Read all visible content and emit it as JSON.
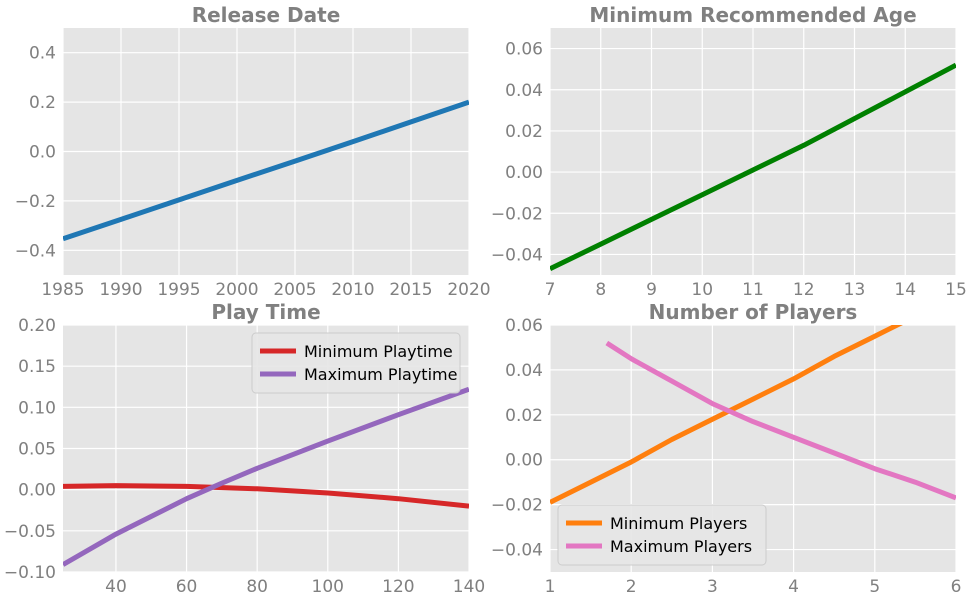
{
  "colors": {
    "axes_bg": "#e5e5e5",
    "grid": "#ffffff",
    "text": "#808080",
    "blue": "#1f77b4",
    "green": "#008000",
    "red": "#d62728",
    "purple": "#9467bd",
    "orange": "#ff7f0e",
    "pink": "#e377c2"
  },
  "chart_data": [
    {
      "type": "line",
      "title": "Release Date",
      "xlabel": "",
      "ylabel": "",
      "xlim": [
        1985,
        2020
      ],
      "ylim": [
        -0.5,
        0.5
      ],
      "xticks": [
        "1985",
        "1990",
        "1995",
        "2000",
        "2005",
        "2010",
        "2015",
        "2020"
      ],
      "yticks": [
        "−0.4",
        "−0.2",
        "0.0",
        "0.2",
        "0.4"
      ],
      "grid": true,
      "series": [
        {
          "x": [
            1985,
            1990,
            1995,
            2000,
            2005,
            2010,
            2015,
            2020
          ],
          "y": [
            -0.353,
            -0.275,
            -0.196,
            -0.117,
            -0.039,
            0.04,
            0.12,
            0.2
          ]
        }
      ]
    },
    {
      "type": "line",
      "title": "Minimum Recommended Age",
      "xlabel": "",
      "ylabel": "",
      "xlim": [
        7,
        15
      ],
      "ylim": [
        -0.05,
        0.07
      ],
      "xticks": [
        "7",
        "8",
        "9",
        "10",
        "11",
        "12",
        "13",
        "14",
        "15"
      ],
      "yticks": [
        "−0.04",
        "−0.02",
        "0.00",
        "0.02",
        "0.04",
        "0.06"
      ],
      "grid": true,
      "series": [
        {
          "x": [
            7,
            8,
            9,
            10,
            11,
            12,
            13,
            14,
            15
          ],
          "y": [
            -0.047,
            -0.035,
            -0.023,
            -0.011,
            0.001,
            0.013,
            0.026,
            0.039,
            0.052
          ]
        }
      ]
    },
    {
      "type": "line",
      "title": "Play Time",
      "xlabel": "",
      "ylabel": "",
      "xlim": [
        25,
        140
      ],
      "ylim": [
        -0.1,
        0.2
      ],
      "xticks": [
        "40",
        "60",
        "80",
        "100",
        "120",
        "140"
      ],
      "yticks": [
        "−0.10",
        "−0.05",
        "0.00",
        "0.05",
        "0.10",
        "0.15",
        "0.20"
      ],
      "grid": true,
      "legend": "top-right",
      "series": [
        {
          "name": "Minimum Playtime",
          "x": [
            25,
            40,
            60,
            80,
            100,
            120,
            140
          ],
          "y": [
            0.004,
            0.005,
            0.004,
            0.001,
            -0.004,
            -0.011,
            -0.02
          ]
        },
        {
          "name": "Maximum Playtime",
          "x": [
            25,
            40,
            60,
            70,
            80,
            100,
            120,
            140
          ],
          "y": [
            -0.091,
            -0.054,
            -0.011,
            0.008,
            0.026,
            0.059,
            0.091,
            0.122
          ]
        }
      ]
    },
    {
      "type": "line",
      "title": "Number of Players",
      "xlabel": "",
      "ylabel": "",
      "xlim": [
        1,
        6
      ],
      "ylim": [
        -0.05,
        0.06
      ],
      "xticks": [
        "1",
        "2",
        "3",
        "4",
        "5",
        "6"
      ],
      "yticks": [
        "−0.04",
        "−0.02",
        "0.00",
        "0.02",
        "0.04",
        "0.06"
      ],
      "grid": true,
      "legend": "bottom-left",
      "series": [
        {
          "name": "Minimum Players",
          "x": [
            1,
            1.5,
            2,
            2.5,
            3,
            3.5,
            4,
            4.5,
            5,
            5.5
          ],
          "y": [
            -0.019,
            -0.01,
            -0.001,
            0.009,
            0.018,
            0.027,
            0.036,
            0.046,
            0.055,
            0.064
          ]
        },
        {
          "name": "Maximum Players",
          "x": [
            1.7,
            2,
            2.5,
            3,
            3.5,
            4,
            4.5,
            5,
            5.5,
            6
          ],
          "y": [
            0.052,
            0.045,
            0.035,
            0.025,
            0.017,
            0.01,
            0.003,
            -0.004,
            -0.01,
            -0.017
          ]
        }
      ]
    }
  ]
}
